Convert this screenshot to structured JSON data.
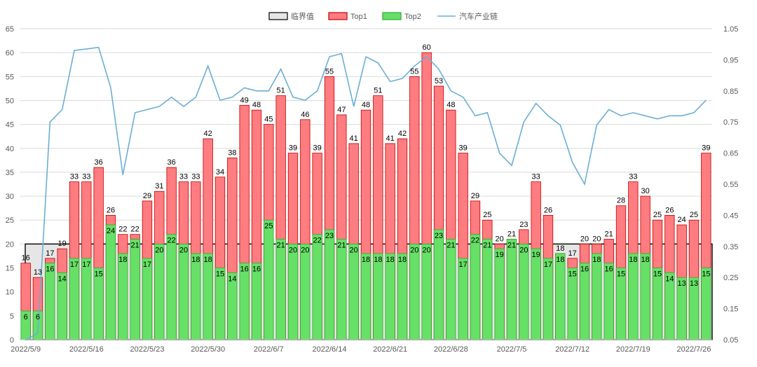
{
  "chart_data": {
    "type": "bar",
    "title": "",
    "xlabel": "",
    "ylabel": "",
    "ylim": [
      0,
      65
    ],
    "y2lim": [
      0.05,
      1.05
    ],
    "yticks": [
      0,
      5,
      10,
      15,
      20,
      25,
      30,
      35,
      40,
      45,
      50,
      55,
      60,
      65
    ],
    "y2ticks": [
      "0.05",
      "0.15",
      "0.25",
      "0.35",
      "0.45",
      "0.55",
      "0.65",
      "0.75",
      "0.85",
      "0.95",
      "1.05"
    ],
    "grid": true,
    "legend_position": "top",
    "colors": {
      "top1_fill": "#ff7c80",
      "top1_stroke": "#c00000",
      "top2_fill": "#66e066",
      "top2_stroke": "#33a833",
      "line": "#6baed6",
      "threshold_fill": "#e7e6e6",
      "threshold_stroke": "#000000"
    },
    "legend": [
      {
        "name": "临界值",
        "kind": "box"
      },
      {
        "name": "Top1",
        "kind": "box"
      },
      {
        "name": "Top2",
        "kind": "box"
      },
      {
        "name": "汽车产业链",
        "kind": "line"
      }
    ],
    "threshold": {
      "name": "临界值",
      "value": 20
    },
    "categories": [
      "2022/5/9",
      "2022/5/10",
      "2022/5/11",
      "2022/5/12",
      "2022/5/13",
      "2022/5/16",
      "2022/5/17",
      "2022/5/18",
      "2022/5/19",
      "2022/5/20",
      "2022/5/23",
      "2022/5/24",
      "2022/5/25",
      "2022/5/26",
      "2022/5/27",
      "2022/5/30",
      "2022/5/31",
      "2022/6/1",
      "2022/6/2",
      "2022/6/6",
      "2022/6/7",
      "2022/6/8",
      "2022/6/9",
      "2022/6/10",
      "2022/6/13",
      "2022/6/14",
      "2022/6/15",
      "2022/6/16",
      "2022/6/17",
      "2022/6/20",
      "2022/6/21",
      "2022/6/22",
      "2022/6/23",
      "2022/6/24",
      "2022/6/27",
      "2022/6/28",
      "2022/6/29",
      "2022/6/30",
      "2022/7/1",
      "2022/7/4",
      "2022/7/5",
      "2022/7/6",
      "2022/7/7",
      "2022/7/8",
      "2022/7/11",
      "2022/7/12",
      "2022/7/13",
      "2022/7/14",
      "2022/7/15",
      "2022/7/18",
      "2022/7/19",
      "2022/7/20",
      "2022/7/21",
      "2022/7/22",
      "2022/7/25",
      "2022/7/26",
      "2022/7/27"
    ],
    "xtick_labels": [
      "2022/5/9",
      "2022/5/16",
      "2022/5/23",
      "2022/5/30",
      "2022/6/7",
      "2022/6/14",
      "2022/6/21",
      "2022/6/28",
      "2022/7/5",
      "2022/7/12",
      "2022/7/19",
      "2022/7/26"
    ],
    "series": [
      {
        "name": "Top1",
        "type": "bar",
        "values": [
          16,
          13,
          17,
          19,
          33,
          33,
          36,
          26,
          22,
          22,
          29,
          31,
          36,
          33,
          33,
          42,
          34,
          38,
          49,
          48,
          45,
          51,
          39,
          46,
          39,
          55,
          47,
          41,
          48,
          51,
          41,
          42,
          55,
          60,
          53,
          48,
          39,
          29,
          25,
          20,
          21,
          23,
          33,
          26,
          18,
          17,
          20,
          20,
          21,
          28,
          33,
          30,
          25,
          26,
          24,
          25,
          39
        ]
      },
      {
        "name": "Top2",
        "type": "bar",
        "values": [
          6,
          6,
          16,
          14,
          17,
          17,
          15,
          24,
          18,
          21,
          17,
          20,
          22,
          20,
          18,
          18,
          15,
          14,
          16,
          16,
          25,
          21,
          20,
          20,
          22,
          23,
          21,
          20,
          18,
          18,
          18,
          18,
          20,
          20,
          23,
          21,
          17,
          22,
          21,
          19,
          21,
          20,
          19,
          17,
          18,
          15,
          16,
          18,
          16,
          15,
          18,
          18,
          15,
          14,
          13,
          13,
          15
        ]
      },
      {
        "name": "汽车产业链",
        "type": "line",
        "axis": "right",
        "values": [
          0.05,
          0.07,
          0.75,
          0.79,
          0.98,
          0.985,
          0.99,
          0.86,
          0.58,
          0.78,
          0.79,
          0.8,
          0.83,
          0.8,
          0.83,
          0.93,
          0.82,
          0.83,
          0.86,
          0.85,
          0.85,
          0.92,
          0.83,
          0.82,
          0.85,
          0.96,
          0.97,
          0.8,
          0.96,
          0.94,
          0.88,
          0.89,
          0.93,
          0.96,
          0.92,
          0.85,
          0.83,
          0.77,
          0.78,
          0.65,
          0.61,
          0.75,
          0.81,
          0.77,
          0.74,
          0.62,
          0.55,
          0.74,
          0.79,
          0.77,
          0.78,
          0.77,
          0.76,
          0.77,
          0.77,
          0.78,
          0.82
        ]
      }
    ]
  }
}
